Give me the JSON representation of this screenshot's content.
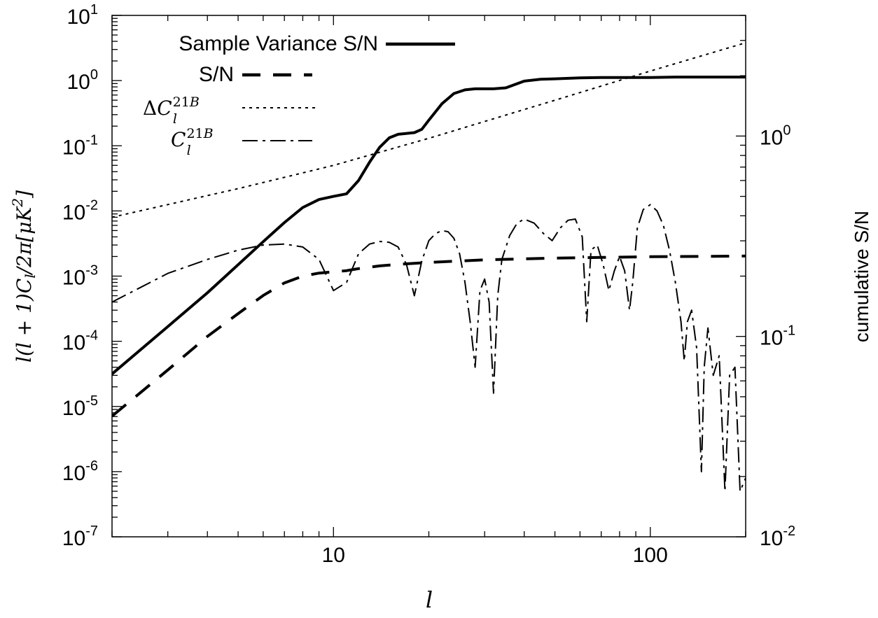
{
  "chart_data": {
    "type": "line",
    "xlabel": "l",
    "ylabel": "l(l+1)C_l/2π[μK^2]",
    "ylabel_parts": {
      "a": "l(l + 1)C",
      "b": "l",
      "c": "/2π[μK",
      "d": "2",
      "e": "]"
    },
    "y2label": "cumulative S/N",
    "xscale": "log",
    "yscale": "log",
    "y2scale": "log",
    "xlim": [
      2,
      200
    ],
    "ylim": [
      1e-07,
      10
    ],
    "y2lim": [
      0.01,
      4
    ],
    "x_ticks": [
      {
        "value": 10,
        "label": "10"
      },
      {
        "value": 100,
        "label": "100"
      }
    ],
    "y_ticks": [
      {
        "value": 1e-07,
        "base": "10",
        "exp": "-7"
      },
      {
        "value": 1e-06,
        "base": "10",
        "exp": "-6"
      },
      {
        "value": 1e-05,
        "base": "10",
        "exp": "-5"
      },
      {
        "value": 0.0001,
        "base": "10",
        "exp": "-4"
      },
      {
        "value": 0.001,
        "base": "10",
        "exp": "-3"
      },
      {
        "value": 0.01,
        "base": "10",
        "exp": "-2"
      },
      {
        "value": 0.1,
        "base": "10",
        "exp": "-1"
      },
      {
        "value": 1,
        "base": "10",
        "exp": "0"
      },
      {
        "value": 10,
        "base": "10",
        "exp": "1"
      }
    ],
    "y2_ticks": [
      {
        "value": 0.01,
        "base": "10",
        "exp": "-2"
      },
      {
        "value": 0.1,
        "base": "10",
        "exp": "-1"
      },
      {
        "value": 1,
        "base": "10",
        "exp": "0"
      }
    ],
    "legend_position": "top-left",
    "series": [
      {
        "name": "Sample Variance S/N",
        "axis": "y2",
        "style": "solid",
        "x": [
          2,
          3,
          4,
          5,
          6,
          7,
          8,
          9,
          10,
          11,
          12,
          13,
          14,
          15,
          16,
          18,
          19,
          20,
          22,
          24,
          26,
          28,
          32,
          35,
          40,
          45,
          50,
          60,
          70,
          80,
          90,
          100,
          120,
          150,
          200
        ],
        "y": [
          0.065,
          0.112,
          0.165,
          0.228,
          0.297,
          0.37,
          0.44,
          0.482,
          0.5,
          0.515,
          0.6,
          0.74,
          0.88,
          0.98,
          1.02,
          1.04,
          1.08,
          1.2,
          1.45,
          1.63,
          1.7,
          1.72,
          1.72,
          1.74,
          1.88,
          1.92,
          1.93,
          1.95,
          1.96,
          1.96,
          1.96,
          1.96,
          1.97,
          1.97,
          1.97
        ]
      },
      {
        "name": "S/N",
        "axis": "y2",
        "style": "dashed",
        "x": [
          2,
          3,
          4,
          5,
          6,
          7,
          8,
          9,
          10,
          11,
          12,
          14,
          16,
          20,
          25,
          30,
          40,
          50,
          70,
          100,
          150,
          200
        ],
        "y": [
          0.04,
          0.068,
          0.1,
          0.13,
          0.16,
          0.185,
          0.2,
          0.207,
          0.21,
          0.213,
          0.218,
          0.225,
          0.229,
          0.234,
          0.238,
          0.241,
          0.244,
          0.246,
          0.248,
          0.25,
          0.251,
          0.252
        ]
      },
      {
        "name": "ΔC_l^21B",
        "axis": "y",
        "style": "dotted",
        "x": [
          2,
          5,
          10,
          20,
          50,
          100,
          200
        ],
        "y": [
          0.008,
          0.022,
          0.05,
          0.13,
          0.5,
          1.4,
          3.8
        ]
      },
      {
        "name": "C_l^21B",
        "axis": "y",
        "style": "dashdot",
        "x": [
          2,
          3,
          4,
          5,
          6,
          7,
          8,
          9,
          10,
          11,
          12,
          13,
          14,
          15,
          16,
          17,
          18,
          19,
          20,
          21,
          22,
          23,
          24,
          25,
          26,
          27,
          28,
          29,
          30,
          31,
          32,
          33,
          34,
          36,
          38,
          40,
          43,
          46,
          49,
          52,
          55,
          58,
          61,
          63,
          65,
          68,
          71,
          74,
          77,
          80,
          83,
          86,
          88,
          91,
          95,
          100,
          105,
          110,
          115,
          120,
          125,
          128,
          131,
          135,
          140,
          145,
          148,
          152,
          158,
          165,
          172,
          178,
          185,
          192,
          200
        ],
        "y": [
          0.0004,
          0.0011,
          0.0018,
          0.0025,
          0.003,
          0.0031,
          0.0028,
          0.0018,
          0.0006,
          0.0008,
          0.0022,
          0.0031,
          0.0034,
          0.0033,
          0.0028,
          0.0015,
          0.0005,
          0.0017,
          0.0035,
          0.0045,
          0.005,
          0.0048,
          0.0038,
          0.0022,
          0.0008,
          0.0002,
          4e-05,
          0.0006,
          0.0009,
          0.0004,
          1.6e-05,
          0.0005,
          0.0018,
          0.0042,
          0.0065,
          0.0075,
          0.0065,
          0.0045,
          0.0035,
          0.0055,
          0.0072,
          0.0075,
          0.004,
          0.0002,
          0.0025,
          0.003,
          0.0015,
          0.0006,
          0.0012,
          0.002,
          0.0012,
          0.0003,
          0.0008,
          0.0055,
          0.0105,
          0.0125,
          0.01,
          0.006,
          0.0025,
          0.0008,
          0.0002,
          5e-05,
          0.0002,
          0.0003,
          8e-05,
          1e-06,
          4e-05,
          0.00016,
          3e-05,
          6e-05,
          5e-07,
          3e-05,
          4e-05,
          5e-07,
          8e-07
        ]
      }
    ]
  }
}
